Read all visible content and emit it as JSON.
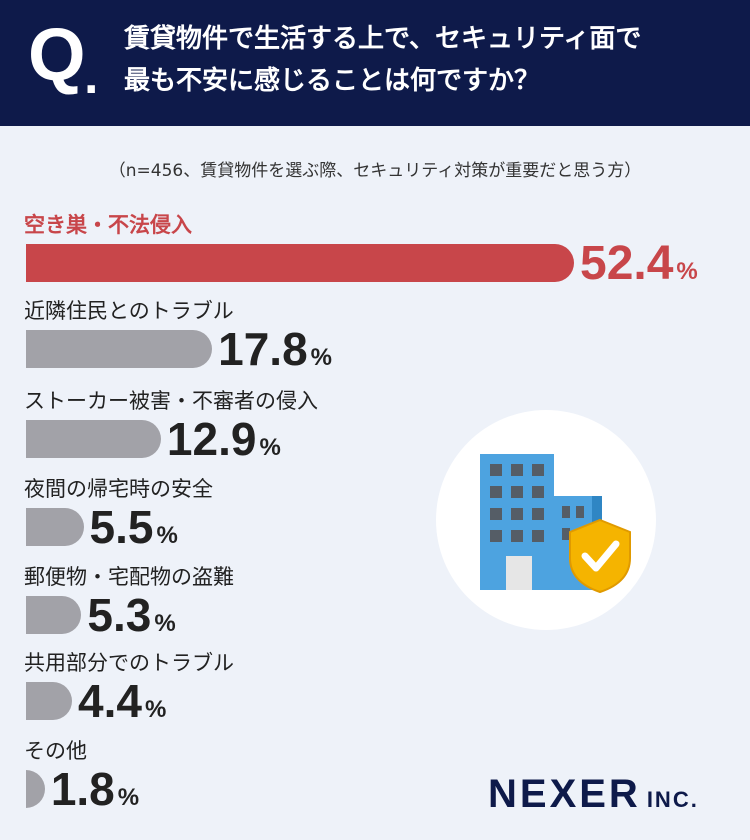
{
  "header": {
    "q_mark": "Q",
    "q_dot": ".",
    "question_line1": "賃貸物件で生活する上で、セキュリティ面で",
    "question_line2": "最も不安に感じることは何ですか？"
  },
  "note": "（n=456、賃貸物件を選ぶ際、セキュリティ対策が重要だと思う方）",
  "chart_data": {
    "type": "bar",
    "orientation": "horizontal",
    "categories": [
      "空き巣・不法侵入",
      "近隣住民とのトラブル",
      "ストーカー被害・不審者の侵入",
      "夜間の帰宅時の安全",
      "郵便物・宅配物の盗難",
      "共用部分でのトラブル",
      "その他"
    ],
    "values": [
      52.4,
      17.8,
      12.9,
      5.5,
      5.3,
      4.4,
      1.8
    ],
    "value_labels": [
      "52.4",
      "17.8",
      "12.9",
      "5.5",
      "5.3",
      "4.4",
      "1.8"
    ],
    "unit": "%",
    "highlight_color": "#c8464a",
    "bar_color": "#a2a2a8"
  },
  "illustration": {
    "icon": "building-with-shield-icon",
    "colors": {
      "building": "#4da3e0",
      "shield": "#f5b400",
      "circle": "#ffffff"
    }
  },
  "brand": {
    "main": "NEXER",
    "sub": "INC."
  }
}
